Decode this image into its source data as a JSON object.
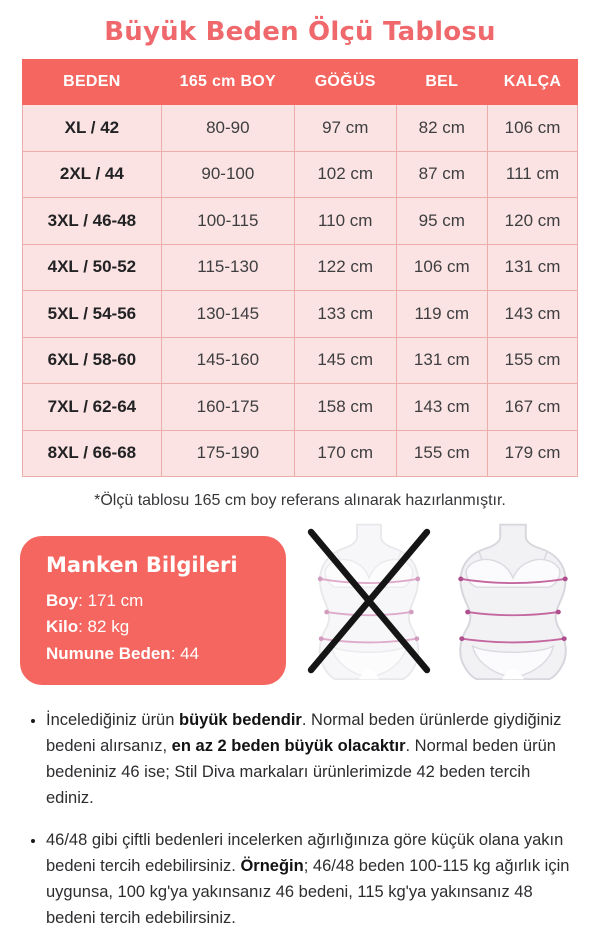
{
  "page": {
    "title": "Büyük Beden Ölçü Tablosu",
    "footnote": "*Ölçü tablosu 165 cm boy referans alınarak hazırlanmıştır."
  },
  "size_table": {
    "columns": [
      "BEDEN",
      "165 cm BOY",
      "GÖĞÜS",
      "BEL",
      "KALÇA"
    ],
    "rows": [
      [
        "XL / 42",
        "80-90",
        "97 cm",
        "82 cm",
        "106 cm"
      ],
      [
        "2XL / 44",
        "90-100",
        "102 cm",
        "87 cm",
        "111 cm"
      ],
      [
        "3XL / 46-48",
        "100-115",
        "110 cm",
        "95 cm",
        "120 cm"
      ],
      [
        "4XL / 50-52",
        "115-130",
        "122 cm",
        "106 cm",
        "131 cm"
      ],
      [
        "5XL / 54-56",
        "130-145",
        "133 cm",
        "119 cm",
        "143 cm"
      ],
      [
        "6XL / 58-60",
        "145-160",
        "145 cm",
        "131 cm",
        "155 cm"
      ],
      [
        "7XL / 62-64",
        "160-175",
        "158 cm",
        "143 cm",
        "167 cm"
      ],
      [
        "8XL / 66-68",
        "175-190",
        "170 cm",
        "155 cm",
        "179 cm"
      ]
    ]
  },
  "model_info": {
    "title": "Manken Bilgileri",
    "fields": [
      {
        "label": "Boy",
        "value": "171 cm"
      },
      {
        "label": "Kilo",
        "value": "82 kg"
      },
      {
        "label": "Numune Beden",
        "value": "44"
      }
    ]
  },
  "figures": {
    "wrong_figure_meaning": "normal beden ölçüsü (yanlış - üzeri çizili)",
    "correct_figure_meaning": "büyük beden ölçüsü (doğru)"
  },
  "notes": [
    {
      "segments": [
        {
          "text": "İncelediğiniz ürün ",
          "bold": false
        },
        {
          "text": "büyük bedendir",
          "bold": true
        },
        {
          "text": ". Normal beden ürünlerde giydiğiniz bedeni alırsanız, ",
          "bold": false
        },
        {
          "text": "en az 2 beden büyük olacaktır",
          "bold": true
        },
        {
          "text": ". Normal beden ürün bedeniniz 46 ise; Stil Diva markaları ürünlerimizde 42 beden tercih ediniz.",
          "bold": false
        }
      ]
    },
    {
      "segments": [
        {
          "text": "46/48 gibi çiftli bedenleri incelerken ağırlığınıza göre küçük olana yakın bedeni tercih edebilirsiniz. ",
          "bold": false
        },
        {
          "text": "Örneğin",
          "bold": true
        },
        {
          "text": "; 46/48 beden 100-115 kg ağırlık için uygunsa, 100 kg'ya yakınsanız 46 bedeni, 115 kg'ya yakınsanız 48 bedeni tercih edebilirsiniz.",
          "bold": false
        }
      ]
    }
  ],
  "colors": {
    "accent": "#F4665F",
    "title_text": "#EF686C",
    "row_background": "#FAE3E2",
    "row_border": "#ECACA9",
    "header_text": "#FFFFFF",
    "body_text": "#3E3E41",
    "measure_line": "#C4679F",
    "cross_mark": "#151515"
  }
}
